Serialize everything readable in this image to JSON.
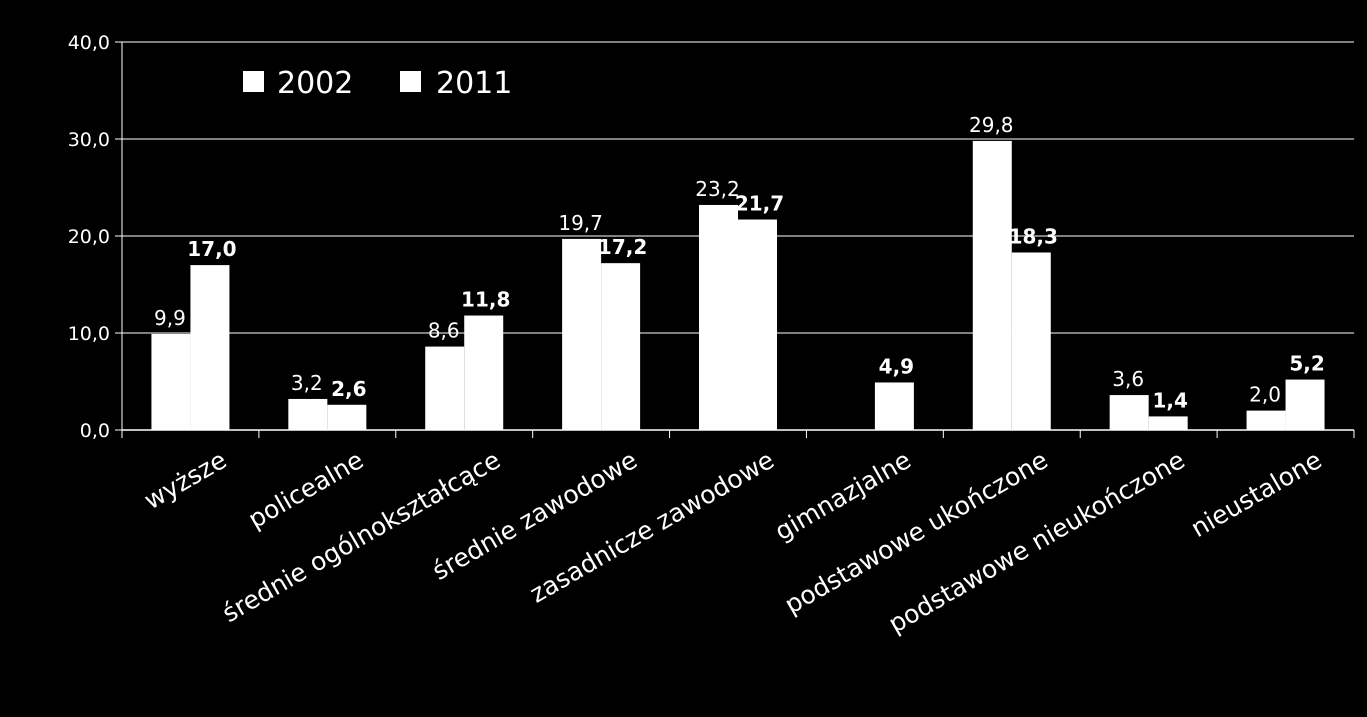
{
  "chart_data": {
    "type": "bar",
    "categories": [
      "wyższe",
      "policealne",
      "średnie ogólnokształcące",
      "średnie zawodowe",
      "zasadnicze zawodowe",
      "gimnazjalne",
      "podstawowe ukończone",
      "podstawowe nieukończone",
      "nieustalone"
    ],
    "series": [
      {
        "name": "2002",
        "values": [
          9.9,
          3.2,
          8.6,
          19.7,
          23.2,
          null,
          29.8,
          3.6,
          2.0
        ],
        "labels": [
          "9,9",
          "3,2",
          "8,6",
          "19,7",
          "23,2",
          "",
          "29,8",
          "3,6",
          "2,0"
        ]
      },
      {
        "name": "2011",
        "values": [
          17.0,
          2.6,
          11.8,
          17.2,
          21.7,
          4.9,
          18.3,
          1.4,
          5.2
        ],
        "labels": [
          "17,0",
          "2,6",
          "11,8",
          "17,2",
          "21,7",
          "4,9",
          "18,3",
          "1,4",
          "5,2"
        ]
      }
    ],
    "ylim": [
      0,
      40
    ],
    "yticks": [
      "0,0",
      "10,0",
      "20,0",
      "30,0",
      "40,0"
    ],
    "grid": true,
    "legend": "top-left",
    "colors": {
      "background": "#000000",
      "bars": "#ffffff",
      "text": "#ffffff",
      "grid": "#ffffff"
    }
  }
}
